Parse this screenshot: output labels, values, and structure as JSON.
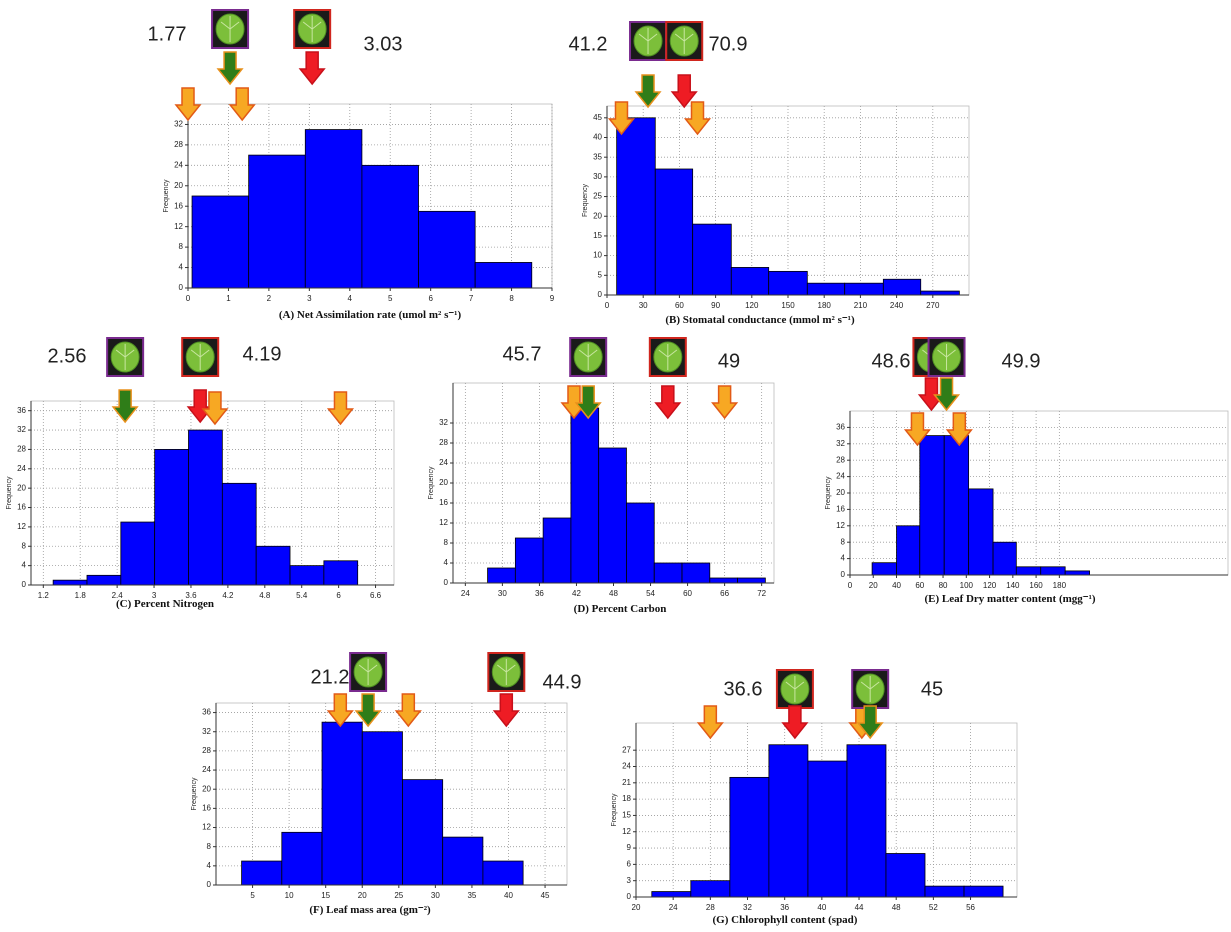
{
  "chart_data": [
    {
      "type": "histogram",
      "xlabel": "(A) Net Assimilation rate (umol m² s⁻¹)",
      "ylabel": "Frequency",
      "bins": [
        0.1,
        1.5,
        2.9,
        4.3,
        5.7,
        7.1,
        8.5
      ],
      "counts": [
        18,
        26,
        31,
        24,
        15,
        5
      ],
      "color": "#0000ff",
      "xlim": [
        0,
        9
      ],
      "xticks": [
        0,
        1,
        2,
        3,
        4,
        5,
        6,
        7,
        8,
        9
      ],
      "ylim": [
        0,
        36
      ],
      "yticks": [
        0,
        4,
        8,
        12,
        16,
        20,
        24,
        28,
        32
      ],
      "grid": true,
      "annotations": [
        "1.77",
        "3.03"
      ],
      "arrows": [
        {
          "x": 0,
          "color": "#f7a823"
        },
        {
          "x": 1.04,
          "color": "#2f7d18"
        },
        {
          "x": 1.34,
          "color": "#f7a823"
        },
        {
          "x": 3.07,
          "color": "#ee1c24"
        }
      ]
    },
    {
      "type": "histogram",
      "xlabel": "(B) Stomatal conductance (mmol m² s⁻¹)",
      "ylabel": "Frequency",
      "bins": [
        8,
        40,
        71,
        103,
        134,
        166,
        197,
        229,
        260,
        292
      ],
      "counts": [
        45,
        32,
        18,
        7,
        6,
        3,
        3,
        4,
        1
      ],
      "color": "#0000ff",
      "xlim": [
        0,
        300
      ],
      "xticks": [
        0,
        30,
        60,
        90,
        120,
        150,
        180,
        210,
        240,
        270
      ],
      "ylim": [
        0,
        48
      ],
      "yticks": [
        0,
        5,
        10,
        15,
        20,
        25,
        30,
        35,
        40,
        45
      ],
      "grid": true,
      "annotations": [
        "41.2",
        "70.9"
      ],
      "arrows": [
        {
          "x": 12,
          "color": "#f7a823"
        },
        {
          "x": 34,
          "color": "#2f7d18"
        },
        {
          "x": 64,
          "color": "#ee1c24"
        },
        {
          "x": 75,
          "color": "#f7a823"
        }
      ]
    },
    {
      "type": "histogram",
      "xlabel": "(C) Percent Nitrogen",
      "ylabel": "Frequency",
      "bins": [
        1.36,
        1.91,
        2.46,
        3.01,
        3.56,
        4.11,
        4.66,
        5.21,
        5.76,
        6.31
      ],
      "counts": [
        1,
        2,
        13,
        28,
        32,
        21,
        8,
        4,
        5
      ],
      "color": "#0000ff",
      "xlim": [
        1,
        6.9
      ],
      "xticks": [
        1.2,
        1.8,
        2.4,
        3,
        3.6,
        4.2,
        4.8,
        5.4,
        6,
        6.6
      ],
      "ylim": [
        0,
        38
      ],
      "yticks": [
        0,
        4,
        8,
        12,
        16,
        20,
        24,
        28,
        32,
        36
      ],
      "grid": true,
      "annotations": [
        "2.56",
        "4.19"
      ],
      "arrows": [
        {
          "x": 2.53,
          "color": "#2f7d18"
        },
        {
          "x": 3.75,
          "color": "#ee1c24"
        },
        {
          "x": 3.99,
          "color": "#f7a823"
        },
        {
          "x": 6.03,
          "color": "#f7a823"
        }
      ]
    },
    {
      "type": "histogram",
      "xlabel": "(D) Percent Carbon",
      "ylabel": "Frequency",
      "bins": [
        27.6,
        32.1,
        36.6,
        41.1,
        45.6,
        50.1,
        54.6,
        59.1,
        63.6,
        68.1,
        72.6
      ],
      "counts": [
        3,
        9,
        13,
        35,
        27,
        16,
        4,
        4,
        1,
        1
      ],
      "color": "#0000ff",
      "xlim": [
        22,
        74
      ],
      "xticks": [
        24,
        30,
        36,
        42,
        48,
        54,
        60,
        66,
        72
      ],
      "ylim": [
        0,
        40
      ],
      "yticks": [
        0,
        4,
        8,
        12,
        16,
        20,
        24,
        28,
        32
      ],
      "grid": true,
      "annotations": [
        "45.7",
        "49"
      ],
      "arrows": [
        {
          "x": 41.6,
          "color": "#f7a823"
        },
        {
          "x": 43.9,
          "color": "#2f7d18"
        },
        {
          "x": 56.8,
          "color": "#ee1c24"
        },
        {
          "x": 66,
          "color": "#f7a823"
        }
      ]
    },
    {
      "type": "histogram",
      "xlabel": "(E) Leaf Dry matter content (mgg⁻¹)",
      "ylabel": "Frequency",
      "bins": [
        19,
        40,
        60,
        81,
        102,
        123,
        143,
        164,
        185,
        206
      ],
      "counts": [
        3,
        12,
        34,
        34,
        21,
        8,
        2,
        2,
        1
      ],
      "color": "#0000ff",
      "xlim": [
        0,
        325
      ],
      "xticks": [
        0,
        20,
        40,
        60,
        80,
        100,
        120,
        140,
        160,
        180
      ],
      "ylim": [
        0,
        40
      ],
      "yticks": [
        0,
        4,
        8,
        12,
        16,
        20,
        24,
        28,
        32,
        36
      ],
      "grid": true,
      "annotations": [
        "48.6",
        "49.9"
      ],
      "arrows": [
        {
          "x": 58,
          "color": "#f7a823"
        },
        {
          "x": 70,
          "color": "#ee1c24"
        },
        {
          "x": 83,
          "color": "#2f7d18"
        },
        {
          "x": 94,
          "color": "#f7a823"
        }
      ]
    },
    {
      "type": "histogram",
      "xlabel": "(F) Leaf mass area (gm⁻²)",
      "ylabel": "Frequency",
      "bins": [
        3.5,
        9,
        14.5,
        20,
        25.5,
        31,
        36.5,
        42
      ],
      "counts": [
        5,
        11,
        34,
        32,
        22,
        10,
        5
      ],
      "color": "#0000ff",
      "xlim": [
        0,
        48
      ],
      "xticks": [
        5,
        10,
        15,
        20,
        25,
        30,
        35,
        40,
        45
      ],
      "ylim": [
        0,
        38
      ],
      "yticks": [
        0,
        4,
        8,
        12,
        16,
        20,
        24,
        28,
        32,
        36
      ],
      "grid": true,
      "annotations": [
        "21.2",
        "44.9"
      ],
      "arrows": [
        {
          "x": 17,
          "color": "#f7a823"
        },
        {
          "x": 20.8,
          "color": "#2f7d18"
        },
        {
          "x": 26.3,
          "color": "#f7a823"
        },
        {
          "x": 39.7,
          "color": "#ee1c24"
        }
      ]
    },
    {
      "type": "histogram",
      "xlabel": "(G) Chlorophyll content (spad)",
      "ylabel": "Frequency",
      "bins": [
        21.7,
        25.9,
        30.1,
        34.3,
        38.5,
        42.7,
        46.9,
        51.1,
        55.3,
        59.5
      ],
      "counts": [
        1,
        3,
        22,
        28,
        25,
        28,
        8,
        2,
        2
      ],
      "color": "#0000ff",
      "xlim": [
        20,
        61
      ],
      "xticks": [
        20,
        24,
        28,
        32,
        36,
        40,
        44,
        48,
        52,
        56
      ],
      "ylim": [
        0,
        32
      ],
      "yticks": [
        0,
        3,
        6,
        9,
        12,
        15,
        18,
        21,
        24,
        27
      ],
      "grid": true,
      "annotations": [
        "36.6",
        "45"
      ],
      "arrows": [
        {
          "x": 28,
          "color": "#f7a823"
        },
        {
          "x": 37.1,
          "color": "#ee1c24"
        },
        {
          "x": 44.3,
          "color": "#f7a823"
        },
        {
          "x": 45.2,
          "color": "#2f7d18"
        }
      ]
    }
  ]
}
